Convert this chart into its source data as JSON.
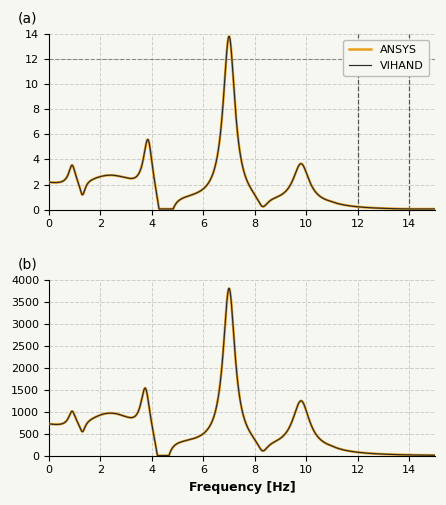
{
  "title_a": "(a)",
  "title_b": "(b)",
  "xlabel": "Frequency [Hz]",
  "legend_ansys": "ANSYS",
  "legend_vihand": "VIHAND",
  "color_ansys": "#E8A020",
  "color_vihand": "#2a2a2a",
  "xlim": [
    0,
    15
  ],
  "ylim_a": [
    0,
    14
  ],
  "ylim_b": [
    0,
    4000
  ],
  "yticks_a": [
    0,
    2,
    4,
    6,
    8,
    10,
    12,
    14
  ],
  "yticks_b": [
    0,
    500,
    1000,
    1500,
    2000,
    2500,
    3000,
    3500,
    4000
  ],
  "xticks": [
    0,
    2,
    4,
    6,
    8,
    10,
    12,
    14
  ],
  "vlines_a": [
    12,
    14
  ],
  "hline_a": 12,
  "grid_color": "#cccccc",
  "background_color": "#f7f7f2"
}
